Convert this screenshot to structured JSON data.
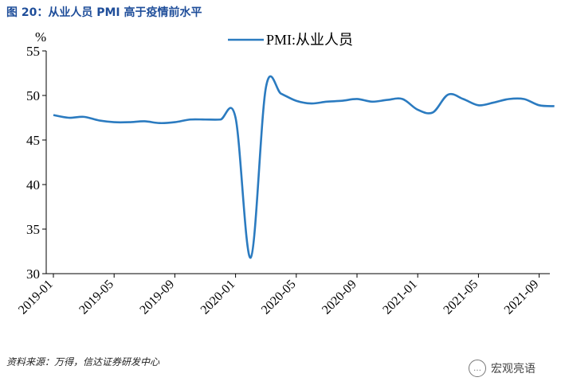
{
  "title": "图 20：从业人员 PMI 高于疫情前水平",
  "source": "资料来源：万得，信达证券研发中心",
  "watermark": {
    "text": "宏观亮语",
    "icon": "chat-bubble-icon"
  },
  "colors": {
    "line": "#2b7bc0",
    "axis": "#000000",
    "title": "#1f4e9a"
  },
  "chart_data": {
    "type": "line",
    "ylabel": "%",
    "ylim": [
      30,
      55
    ],
    "yticks": [
      30,
      35,
      40,
      45,
      50,
      55
    ],
    "xticks": [
      "2019-01",
      "2019-05",
      "2019-09",
      "2020-01",
      "2020-05",
      "2020-09",
      "2021-01",
      "2021-05",
      "2021-09"
    ],
    "grid": false,
    "legend_position": "top-center",
    "x": [
      "2019-01",
      "2019-02",
      "2019-03",
      "2019-04",
      "2019-05",
      "2019-06",
      "2019-07",
      "2019-08",
      "2019-09",
      "2019-10",
      "2019-11",
      "2019-12",
      "2020-01",
      "2020-02",
      "2020-03",
      "2020-04",
      "2020-05",
      "2020-06",
      "2020-07",
      "2020-08",
      "2020-09",
      "2020-10",
      "2020-11",
      "2020-12",
      "2021-01",
      "2021-02",
      "2021-03",
      "2021-04",
      "2021-05",
      "2021-06",
      "2021-07",
      "2021-08",
      "2021-09",
      "2021-10"
    ],
    "series": [
      {
        "name": "PMI:从业人员",
        "values": [
          47.8,
          47.5,
          47.6,
          47.2,
          47.0,
          47.0,
          47.1,
          46.9,
          47.0,
          47.3,
          47.3,
          47.3,
          47.5,
          31.8,
          50.9,
          50.2,
          49.4,
          49.1,
          49.3,
          49.4,
          49.6,
          49.3,
          49.5,
          49.6,
          48.4,
          48.1,
          50.1,
          49.6,
          48.9,
          49.2,
          49.6,
          49.6,
          48.9,
          48.8
        ]
      }
    ]
  }
}
